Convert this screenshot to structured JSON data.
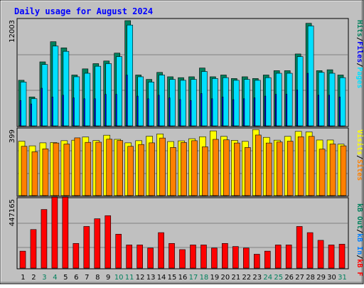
{
  "title": "Daily usage for August 2024",
  "colors": {
    "background": "#c0c0c0",
    "title": "#0000ff",
    "hits": "#00805c",
    "files": "#0000ff",
    "pages": "#00e0ff",
    "visits": "#ffff00",
    "sites": "#ff8000",
    "kbf": "#ff0000",
    "weekend": "#00805c",
    "weekday": "#000000"
  },
  "legend": {
    "top": [
      {
        "label": "Pages",
        "color": "#00e0ff"
      },
      {
        "label": "Files",
        "color": "#0000ff"
      },
      {
        "label": "Hits",
        "color": "#00805c"
      }
    ],
    "middle": [
      {
        "label": "Visits",
        "color": "#ffff00"
      },
      {
        "label": "Sites",
        "color": "#ff8000"
      }
    ],
    "bottom": [
      {
        "label": "kB F",
        "color": "#ff0000"
      },
      {
        "label": "kB In",
        "color": "#0080ff"
      },
      {
        "label": "kB Out",
        "color": "#00805c"
      }
    ]
  },
  "chart_data": [
    {
      "type": "bar",
      "panel": "hits-files-pages",
      "ymax_label": "12003",
      "ylim": [
        0,
        12003
      ],
      "categories": [
        "1",
        "2",
        "3",
        "4",
        "5",
        "6",
        "7",
        "8",
        "9",
        "10",
        "11",
        "12",
        "13",
        "14",
        "15",
        "16",
        "17",
        "18",
        "19",
        "20",
        "21",
        "22",
        "23",
        "24",
        "25",
        "26",
        "27",
        "28",
        "29",
        "30",
        "31"
      ],
      "series": [
        {
          "name": "Hits",
          "values": [
            5200,
            3300,
            7300,
            9600,
            8900,
            5800,
            6500,
            7100,
            7400,
            8300,
            12003,
            5800,
            5300,
            6100,
            5600,
            5500,
            5600,
            6600,
            5600,
            5800,
            5400,
            5600,
            5400,
            5800,
            6300,
            6300,
            8200,
            11700,
            6300,
            6400,
            5800
          ]
        },
        {
          "name": "Files",
          "values": [
            2900,
            2500,
            4300,
            3300,
            3500,
            3200,
            3100,
            3100,
            3600,
            3600,
            5800,
            3400,
            3100,
            3500,
            3200,
            3000,
            2900,
            3700,
            3100,
            3300,
            3000,
            3100,
            3200,
            3400,
            3600,
            3600,
            4100,
            6000,
            3500,
            3500,
            3300
          ]
        },
        {
          "name": "Pages",
          "values": [
            5000,
            3100,
            7000,
            9100,
            8500,
            5600,
            6000,
            6800,
            7100,
            7900,
            11500,
            5600,
            5000,
            5800,
            5300,
            5200,
            5300,
            6200,
            5400,
            5500,
            5200,
            5300,
            5200,
            5500,
            6000,
            6000,
            7900,
            11400,
            6100,
            6000,
            5500
          ]
        }
      ]
    },
    {
      "type": "bar",
      "panel": "visits-sites",
      "ymax_label": "399",
      "ylim": [
        0,
        399
      ],
      "categories": [
        "1",
        "2",
        "3",
        "4",
        "5",
        "6",
        "7",
        "8",
        "9",
        "10",
        "11",
        "12",
        "13",
        "14",
        "15",
        "16",
        "17",
        "18",
        "19",
        "20",
        "21",
        "22",
        "23",
        "24",
        "25",
        "26",
        "27",
        "28",
        "29",
        "30",
        "31"
      ],
      "series": [
        {
          "name": "Visits",
          "values": [
            328,
            300,
            318,
            320,
            331,
            334,
            353,
            332,
            364,
            339,
            318,
            331,
            358,
            372,
            326,
            330,
            343,
            355,
            390,
            357,
            333,
            327,
            398,
            351,
            334,
            357,
            387,
            384,
            335,
            335,
            310
          ]
        },
        {
          "name": "Sites",
          "values": [
            297,
            264,
            282,
            317,
            311,
            348,
            321,
            322,
            340,
            332,
            297,
            308,
            318,
            347,
            290,
            320,
            331,
            294,
            339,
            336,
            317,
            290,
            365,
            317,
            323,
            328,
            355,
            357,
            280,
            311,
            300
          ]
        }
      ]
    },
    {
      "type": "bar",
      "panel": "kb-f",
      "ymax_label": "447165",
      "ylim": [
        0,
        447165
      ],
      "categories": [
        "1",
        "2",
        "3",
        "4",
        "5",
        "6",
        "7",
        "8",
        "9",
        "10",
        "11",
        "12",
        "13",
        "14",
        "15",
        "16",
        "17",
        "18",
        "19",
        "20",
        "21",
        "22",
        "23",
        "24",
        "25",
        "26",
        "27",
        "28",
        "29",
        "30",
        "31"
      ],
      "series": [
        {
          "name": "kB F",
          "values": [
            110000,
            250000,
            380000,
            460000,
            460000,
            160000,
            270000,
            320000,
            340000,
            220000,
            150000,
            150000,
            130000,
            230000,
            160000,
            120000,
            150000,
            150000,
            130000,
            160000,
            140000,
            130000,
            90000,
            110000,
            150000,
            150000,
            270000,
            230000,
            180000,
            150000,
            155000
          ]
        }
      ]
    }
  ],
  "days": [
    {
      "label": "1",
      "weekend": false
    },
    {
      "label": "2",
      "weekend": false
    },
    {
      "label": "3",
      "weekend": true
    },
    {
      "label": "4",
      "weekend": true
    },
    {
      "label": "5",
      "weekend": false
    },
    {
      "label": "6",
      "weekend": false
    },
    {
      "label": "7",
      "weekend": false
    },
    {
      "label": "8",
      "weekend": false
    },
    {
      "label": "9",
      "weekend": false
    },
    {
      "label": "10",
      "weekend": true
    },
    {
      "label": "11",
      "weekend": true
    },
    {
      "label": "12",
      "weekend": false
    },
    {
      "label": "13",
      "weekend": false
    },
    {
      "label": "14",
      "weekend": false
    },
    {
      "label": "15",
      "weekend": false
    },
    {
      "label": "16",
      "weekend": false
    },
    {
      "label": "17",
      "weekend": true
    },
    {
      "label": "18",
      "weekend": true
    },
    {
      "label": "19",
      "weekend": false
    },
    {
      "label": "20",
      "weekend": false
    },
    {
      "label": "21",
      "weekend": false
    },
    {
      "label": "22",
      "weekend": false
    },
    {
      "label": "23",
      "weekend": false
    },
    {
      "label": "24",
      "weekend": true
    },
    {
      "label": "25",
      "weekend": true
    },
    {
      "label": "26",
      "weekend": false
    },
    {
      "label": "27",
      "weekend": false
    },
    {
      "label": "28",
      "weekend": false
    },
    {
      "label": "29",
      "weekend": false
    },
    {
      "label": "30",
      "weekend": false
    },
    {
      "label": "31",
      "weekend": true
    }
  ]
}
